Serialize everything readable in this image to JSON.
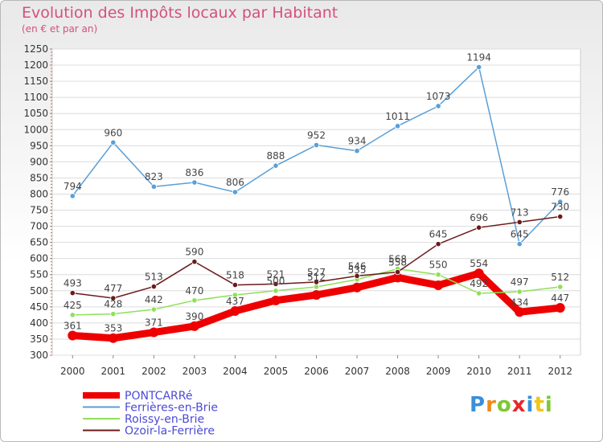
{
  "chart_data": {
    "type": "line",
    "title": "Evolution des Impôts locaux par Habitant",
    "subtitle": "(en € et par an)",
    "x": [
      "2000",
      "2001",
      "2002",
      "2003",
      "2004",
      "2005",
      "2006",
      "2007",
      "2008",
      "2009",
      "2010",
      "2011",
      "2012"
    ],
    "ylim": [
      300,
      1250
    ],
    "yticks": [
      300,
      350,
      400,
      450,
      500,
      550,
      600,
      650,
      700,
      750,
      800,
      850,
      900,
      950,
      1000,
      1050,
      1100,
      1150,
      1200,
      1250
    ],
    "grid": "horizontal",
    "legend_position": "bottom-left",
    "series": [
      {
        "name": "PONTCARRé",
        "color": "#ee0000",
        "values": [
          361,
          353,
          371,
          390,
          437,
          470,
          487,
          510,
          541,
          517,
          554,
          434,
          447
        ],
        "labels": [
          "361",
          "353",
          "371",
          "390",
          "437",
          "",
          "",
          "",
          "",
          "",
          "554",
          "434",
          "447"
        ]
      },
      {
        "name": "Ferrières-en-Brie",
        "color": "#5b9fd6",
        "values": [
          794,
          960,
          823,
          836,
          806,
          888,
          952,
          934,
          1011,
          1073,
          1194,
          645,
          776
        ],
        "labels": [
          "794",
          "960",
          "823",
          "836",
          "806",
          "888",
          "952",
          "934",
          "1011",
          "1073",
          "1194",
          "645",
          "776"
        ]
      },
      {
        "name": "Roissy-en-Brie",
        "color": "#8fe05a",
        "values": [
          425,
          428,
          442,
          470,
          487,
          500,
          512,
          535,
          568,
          550,
          492,
          497,
          512
        ],
        "labels": [
          "425",
          "428",
          "442",
          "470",
          "",
          "500",
          "512",
          "535",
          "568",
          "550",
          "492",
          "497",
          "512"
        ]
      },
      {
        "name": "Ozoir-la-Ferrière",
        "color": "#6b1a1a",
        "values": [
          493,
          477,
          513,
          590,
          518,
          521,
          527,
          546,
          558,
          645,
          696,
          713,
          730
        ],
        "labels": [
          "493",
          "477",
          "513",
          "590",
          "518",
          "521",
          "527",
          "546",
          "558",
          "645",
          "696",
          "713",
          "730"
        ]
      }
    ]
  },
  "logo": {
    "letters": [
      "P",
      "r",
      "o",
      "x",
      "i",
      "t",
      "i"
    ],
    "colors": [
      "#3a8fd8",
      "#f08a1c",
      "#7cc832",
      "#e8262a",
      "#3a8fd8",
      "#f0c419",
      "#7cc832"
    ]
  }
}
